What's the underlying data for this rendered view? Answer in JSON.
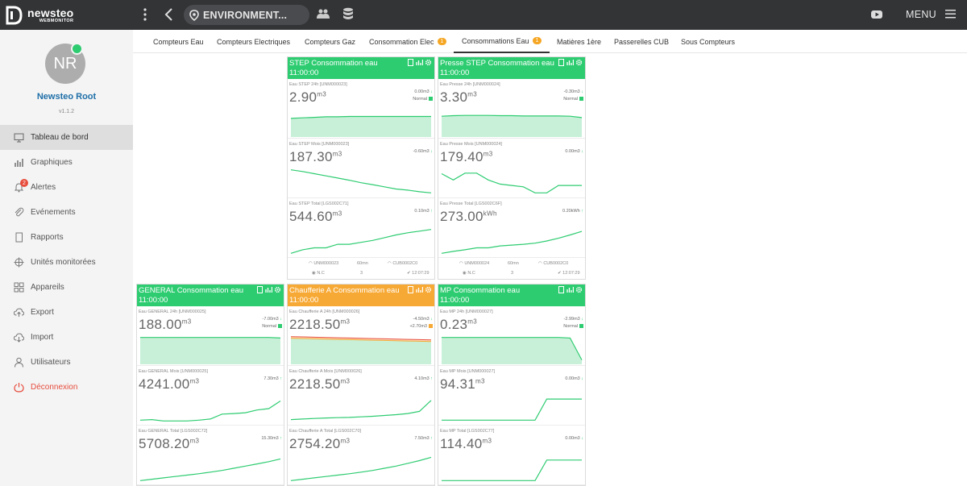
{
  "topbar": {
    "logo_name": "newsteo",
    "logo_sub": "WEBMONITOR",
    "environment_label": "ENVIRONMENT...",
    "menu_label": "MENU"
  },
  "user": {
    "initials": "NR",
    "name": "Newsteo Root",
    "version": "v1.1.2"
  },
  "nav": [
    {
      "label": "Tableau de bord",
      "icon": "monitor-icon",
      "active": true
    },
    {
      "label": "Graphiques",
      "icon": "bar-chart-icon"
    },
    {
      "label": "Alertes",
      "icon": "bell-icon",
      "badge": "2"
    },
    {
      "label": "Evénements",
      "icon": "paperclip-icon"
    },
    {
      "label": "Rapports",
      "icon": "report-icon"
    },
    {
      "label": "Unités monitorées",
      "icon": "crosshair-icon"
    },
    {
      "label": "Appareils",
      "icon": "grid-icon"
    },
    {
      "label": "Export",
      "icon": "cloud-upload-icon"
    },
    {
      "label": "Import",
      "icon": "cloud-download-icon"
    },
    {
      "label": "Utilisateurs",
      "icon": "user-icon"
    },
    {
      "label": "Déconnexion",
      "icon": "power-icon",
      "danger": true
    }
  ],
  "tabs": [
    {
      "label": "Compteurs Eau"
    },
    {
      "label": "Compteurs Electriques"
    },
    {
      "label": "Compteurs Gaz"
    },
    {
      "label": "Consommation Elec",
      "badge": "1"
    },
    {
      "label": "Consommations Eau",
      "badge": "1",
      "active": true
    },
    {
      "label": "Matières 1ère"
    },
    {
      "label": "Passerelles CUB"
    },
    {
      "label": "Sous Compteurs"
    }
  ],
  "colors": {
    "green": "#2ecc71",
    "orange": "#f7a935",
    "red": "#e74c3c",
    "topbar": "#333436"
  },
  "widgets": [
    {
      "title": "STEP Consommation eau",
      "time": "11:00:00",
      "header_color": "green",
      "metrics": [
        {
          "label": "Eau STEP 24h [UNM000023]",
          "value": "2.90",
          "unit": "m3",
          "delta": "0.00m3",
          "direction": "down",
          "status": "Normal",
          "series": [
            0.62,
            0.64,
            0.66,
            0.68,
            0.68,
            0.69,
            0.69,
            0.69,
            0.69,
            0.69,
            0.69,
            0.69,
            0.69
          ],
          "fill": true
        },
        {
          "label": "Eau STEP Mois [UNM000023]",
          "value": "187.30",
          "unit": "m3",
          "delta": "-0.60m3",
          "direction": "down",
          "series": [
            0.92,
            0.86,
            0.78,
            0.7,
            0.62,
            0.54,
            0.45,
            0.38,
            0.3,
            0.22,
            0.18,
            0.12,
            0.08
          ]
        },
        {
          "label": "Eau STEP Total [LGS002C71]",
          "value": "544.60",
          "unit": "m3",
          "delta": "0.10m3",
          "direction": "up",
          "series": [
            0.05,
            0.18,
            0.25,
            0.25,
            0.38,
            0.38,
            0.45,
            0.52,
            0.62,
            0.72,
            0.8,
            0.86,
            0.92
          ]
        }
      ],
      "footer": {
        "unit": "UNM000023",
        "period": "60mn",
        "gateway": "CUB0002C0",
        "signal": "N.C",
        "count": "3",
        "time": "12:07:29"
      }
    },
    {
      "title": "Presse STEP Consommation eau",
      "time": "11:00:00",
      "header_color": "green",
      "metrics": [
        {
          "label": "Eau Presse 24h [UNM000024]",
          "value": "3.30",
          "unit": "m3",
          "delta": "-0.30m3",
          "direction": "down",
          "status": "Normal",
          "series": [
            0.7,
            0.72,
            0.73,
            0.73,
            0.73,
            0.72,
            0.72,
            0.71,
            0.71,
            0.71,
            0.71,
            0.7,
            0.65
          ],
          "fill": true
        },
        {
          "label": "Eau Presse Mois [UNM000024]",
          "value": "179.40",
          "unit": "m3",
          "delta": "0.00m3",
          "direction": "down",
          "series": [
            0.78,
            0.55,
            0.8,
            0.8,
            0.55,
            0.4,
            0.35,
            0.3,
            0.08,
            0.08,
            0.35,
            0.35,
            0.35
          ]
        },
        {
          "label": "Eau Presse Total [LGS002C6F]",
          "value": "273.00",
          "unit": "kWh",
          "delta": "0.20kWh",
          "direction": "up",
          "series": [
            0.05,
            0.12,
            0.18,
            0.25,
            0.25,
            0.32,
            0.35,
            0.38,
            0.42,
            0.5,
            0.6,
            0.72,
            0.85
          ]
        }
      ],
      "footer": {
        "unit": "UNM000024",
        "period": "60mn",
        "gateway": "CUB0002C0",
        "signal": "N.C",
        "count": "3",
        "time": "12:07:29"
      }
    },
    {
      "title": "GENERAL Consommation eau",
      "time": "11:00:00",
      "header_color": "green",
      "metrics": [
        {
          "label": "Eau GENERAL 24h [UNM000025]",
          "value": "188.00",
          "unit": "m3",
          "delta": "-7.00m3",
          "direction": "down",
          "status": "Normal",
          "series": [
            0.92,
            0.92,
            0.92,
            0.92,
            0.92,
            0.92,
            0.92,
            0.92,
            0.92,
            0.92,
            0.92,
            0.92,
            0.9
          ],
          "fill": true
        },
        {
          "label": "Eau GENERAL Mois [UNM000025]",
          "value": "4241.00",
          "unit": "m3",
          "delta": "7.30m3",
          "direction": "up",
          "series": [
            0.08,
            0.1,
            0.05,
            0.05,
            0.05,
            0.08,
            0.12,
            0.3,
            0.32,
            0.35,
            0.45,
            0.5,
            0.78
          ]
        },
        {
          "label": "Eau GENERAL Total [LGS002C72]",
          "value": "5708.20",
          "unit": "m3",
          "delta": "15.30m3",
          "direction": "up",
          "series": [
            0.05,
            0.1,
            0.15,
            0.2,
            0.25,
            0.3,
            0.36,
            0.42,
            0.5,
            0.58,
            0.66,
            0.74,
            0.84
          ]
        }
      ]
    },
    {
      "title": "Chaufferie A Consommation eau",
      "time": "11:00:00",
      "header_color": "orange",
      "metrics": [
        {
          "label": "Eau Chaufferie A 24h [UNM000026]",
          "value": "2218.50",
          "unit": "m3",
          "delta": "-4.50m3",
          "delta2": "+2.70m3",
          "direction": "down",
          "status_color": "orange",
          "series": [
            0.95,
            0.94,
            0.93,
            0.92,
            0.91,
            0.9,
            0.89,
            0.88,
            0.87,
            0.86,
            0.85,
            0.84,
            0.83
          ],
          "fill": true,
          "warn": true
        },
        {
          "label": "Eau Chaufferie A Mois [UNM000026]",
          "value": "2218.50",
          "unit": "m3",
          "delta": "4.10m3",
          "direction": "up",
          "series": [
            0.1,
            0.12,
            0.14,
            0.16,
            0.17,
            0.18,
            0.2,
            0.22,
            0.25,
            0.28,
            0.32,
            0.4,
            0.8
          ]
        },
        {
          "label": "Eau Chaufferie A Total [LGS002C70]",
          "value": "2754.20",
          "unit": "m3",
          "delta": "7.50m3",
          "direction": "up",
          "series": [
            0.05,
            0.1,
            0.15,
            0.2,
            0.25,
            0.3,
            0.36,
            0.42,
            0.5,
            0.58,
            0.68,
            0.78,
            0.9
          ]
        }
      ]
    },
    {
      "title": "MP Consommation eau",
      "time": "11:00:00",
      "header_color": "green",
      "metrics": [
        {
          "label": "Eau MP 24h [UNM000027]",
          "value": "0.23",
          "unit": "m3",
          "delta": "-2.99m3",
          "direction": "down",
          "status": "Normal",
          "series": [
            0.92,
            0.92,
            0.92,
            0.92,
            0.92,
            0.92,
            0.92,
            0.92,
            0.92,
            0.92,
            0.92,
            0.9,
            0.1
          ],
          "fill": true
        },
        {
          "label": "Eau MP Mois [UNM000027]",
          "value": "94.31",
          "unit": "m3",
          "delta": "0.00m3",
          "direction": "down",
          "series": [
            0.08,
            0.08,
            0.08,
            0.08,
            0.08,
            0.08,
            0.08,
            0.08,
            0.08,
            0.85,
            0.85,
            0.85,
            0.85
          ]
        },
        {
          "label": "Eau MP Total [LGS002C77]",
          "value": "114.40",
          "unit": "m3",
          "delta": "0.00m3",
          "direction": "down",
          "series": [
            0.05,
            0.05,
            0.05,
            0.05,
            0.05,
            0.05,
            0.05,
            0.05,
            0.05,
            0.8,
            0.8,
            0.8,
            0.8
          ]
        }
      ]
    }
  ]
}
